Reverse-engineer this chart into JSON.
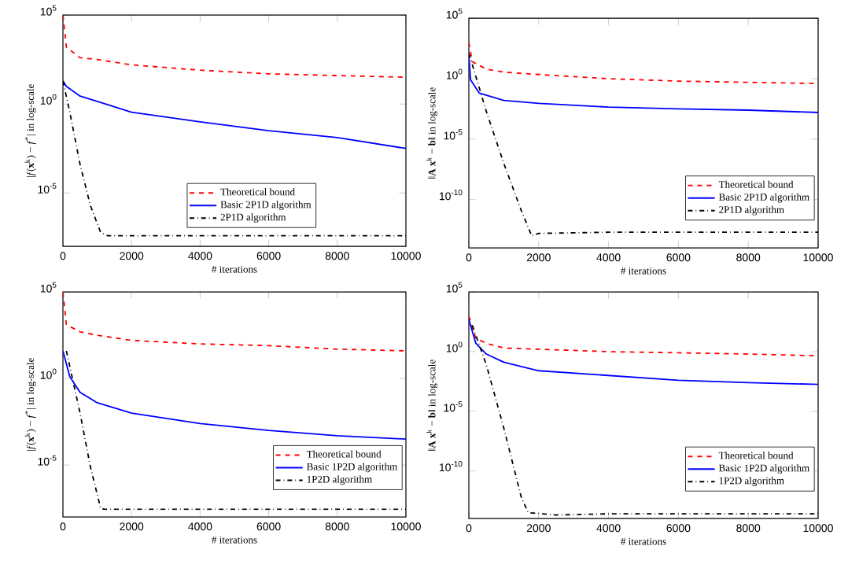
{
  "chart_data": [
    {
      "type": "line",
      "ylabel": "|*f*(**x**$^{k}$) − *f*$^{*}$| in log-scale",
      "xlabel": "# iterations",
      "log": "y",
      "legend": "bottom",
      "grid": false,
      "xlim": [
        0,
        10000
      ],
      "xticks": [
        0,
        2000,
        4000,
        6000,
        8000,
        10000
      ],
      "ylim": [
        1e-08,
        100000.0
      ],
      "yticks": [
        {
          "value": 100000.0,
          "label": "10$^{5}$"
        },
        {
          "value": 1,
          "label": "10$^{0}$"
        },
        {
          "value": 1e-05,
          "label": "10$^{-5}$"
        }
      ],
      "series": [
        {
          "name": "Theoretical bound",
          "color": "#ff0000",
          "line_style": "dashed",
          "x": [
            0,
            100,
            500,
            1000,
            2000,
            4000,
            6000,
            8000,
            10000
          ],
          "values": [
            100000.0,
            1600.0,
            400,
            320,
            160,
            80,
            50,
            40,
            32
          ]
        },
        {
          "name": "Basic 2P1D algorithm",
          "color": "#0000ff",
          "line_style": "solid",
          "x": [
            0,
            100,
            500,
            1000,
            2000,
            4000,
            6000,
            8000,
            10000
          ],
          "values": [
            20,
            10,
            2.8,
            1.4,
            0.35,
            0.1,
            0.032,
            0.013,
            0.0032
          ]
        },
        {
          "name": "2P1D algorithm",
          "color": "#000000",
          "line_style": "dashdot",
          "x": [
            0,
            200,
            500,
            800,
            1100,
            1300,
            10000
          ],
          "values": [
            20,
            0.35,
            0.0004,
            2e-06,
            6e-08,
            4e-08,
            4e-08
          ]
        }
      ]
    },
    {
      "type": "line",
      "ylabel": "‖**A** **x**$^{k}$ − **b**‖ in log-scale",
      "xlabel": "# iterations",
      "log": "y",
      "legend": "bottom right",
      "grid": false,
      "xlim": [
        0,
        10000
      ],
      "xticks": [
        0,
        2000,
        4000,
        6000,
        8000,
        10000
      ],
      "ylim": [
        1e-14,
        100000.0
      ],
      "yticks": [
        {
          "value": 100000.0,
          "label": "10$^{5}$"
        },
        {
          "value": 1,
          "label": "10$^{0}$"
        },
        {
          "value": 1e-05,
          "label": "10$^{-5}$"
        },
        {
          "value": 1e-10,
          "label": "10$^{-10}$"
        }
      ],
      "series": [
        {
          "name": "Theoretical bound",
          "color": "#ff0000",
          "line_style": "dashed",
          "x": [
            0,
            100,
            500,
            1000,
            2000,
            4000,
            6000,
            8000,
            10000
          ],
          "values": [
            1000,
            25,
            6.3,
            3.5,
            2.2,
            1,
            0.63,
            0.5,
            0.4
          ]
        },
        {
          "name": "Basic 2P1D algorithm",
          "color": "#0000ff",
          "line_style": "solid",
          "x": [
            0,
            50,
            300,
            1000,
            2000,
            4000,
            6000,
            8000,
            10000
          ],
          "values": [
            80,
            0.8,
            0.063,
            0.016,
            0.009,
            0.0045,
            0.0032,
            0.0025,
            0.0016
          ]
        },
        {
          "name": "2P1D algorithm",
          "color": "#000000",
          "line_style": "dashdot",
          "x": [
            0,
            500,
            1000,
            1500,
            1800,
            2000,
            4000,
            10000
          ],
          "values": [
            130,
            0.002,
            1e-07,
            1.3e-11,
            1e-13,
            1.6e-13,
            2e-13,
            2e-13
          ]
        }
      ]
    },
    {
      "type": "line",
      "ylabel": "|*f*(**x**$^{k}$) − *f*$^{*}$| in log-scale",
      "xlabel": "# iterations",
      "log": "y",
      "legend": "bottom right",
      "grid": false,
      "xlim": [
        0,
        10000
      ],
      "xticks": [
        0,
        2000,
        4000,
        6000,
        8000,
        10000
      ],
      "ylim": [
        1e-08,
        100000.0
      ],
      "yticks": [
        {
          "value": 100000.0,
          "label": "10$^{5}$"
        },
        {
          "value": 1,
          "label": "10$^{0}$"
        },
        {
          "value": 1e-05,
          "label": "10$^{-5}$"
        }
      ],
      "series": [
        {
          "name": "Theoretical bound",
          "color": "#ff0000",
          "line_style": "dashed",
          "x": [
            0,
            100,
            500,
            1000,
            2000,
            4000,
            6000,
            8000,
            10000
          ],
          "values": [
            100000.0,
            1300.0,
            500,
            320,
            160,
            100,
            80,
            50,
            40
          ]
        },
        {
          "name": "Basic 1P2D algorithm",
          "color": "#0000ff",
          "line_style": "solid",
          "x": [
            0,
            200,
            500,
            1000,
            2000,
            4000,
            6000,
            8000,
            10000
          ],
          "values": [
            40,
            1.3,
            0.16,
            0.04,
            0.01,
            0.0025,
            0.001,
            0.0005,
            0.00032
          ]
        },
        {
          "name": "1P2D algorithm",
          "color": "#000000",
          "line_style": "dashdot",
          "x": [
            100,
            200,
            500,
            800,
            1100,
            1200,
            10000
          ],
          "values": [
            40,
            5,
            0.01,
            8e-06,
            3.2e-08,
            2.8e-08,
            2.8e-08
          ]
        }
      ]
    },
    {
      "type": "line",
      "ylabel": "‖**A** **x**$^{k}$ − **b**‖ in log-scale",
      "xlabel": "# iterations",
      "log": "y",
      "legend": "bottom right",
      "grid": false,
      "xlim": [
        0,
        10000
      ],
      "xticks": [
        0,
        2000,
        4000,
        6000,
        8000,
        10000
      ],
      "ylim": [
        1e-14,
        100000.0
      ],
      "yticks": [
        {
          "value": 100000.0,
          "label": "10$^{5}$"
        },
        {
          "value": 1,
          "label": "10$^{0}$"
        },
        {
          "value": 1e-05,
          "label": "10$^{-5}$"
        },
        {
          "value": 1e-10,
          "label": "10$^{-10}$"
        }
      ],
      "series": [
        {
          "name": "Theoretical bound",
          "color": "#ff0000",
          "line_style": "dashed",
          "x": [
            0,
            200,
            500,
            1000,
            2000,
            4000,
            6000,
            8000,
            10000
          ],
          "values": [
            1000,
            13,
            5,
            2,
            1.6,
            1,
            0.8,
            0.63,
            0.45
          ]
        },
        {
          "name": "Basic 1P2D algorithm",
          "color": "#0000ff",
          "line_style": "solid",
          "x": [
            0,
            200,
            500,
            1000,
            2000,
            4000,
            6000,
            8000,
            10000
          ],
          "values": [
            500,
            5,
            0.63,
            0.13,
            0.025,
            0.01,
            0.004,
            0.0025,
            0.0018
          ]
        },
        {
          "name": "1P2D algorithm",
          "color": "#000000",
          "line_style": "dashdot",
          "x": [
            100,
            500,
            1000,
            1500,
            1700,
            2500,
            4000,
            10000
          ],
          "values": [
            160,
            0.08,
            4e-07,
            6.3e-13,
            3.2e-14,
            2e-14,
            2.5e-14,
            2.5e-14
          ]
        }
      ]
    }
  ]
}
